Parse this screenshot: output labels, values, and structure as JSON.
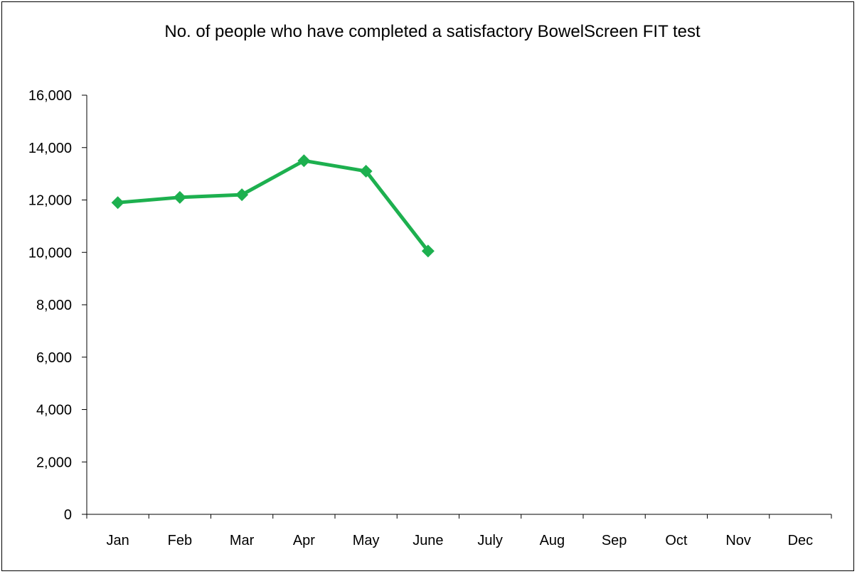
{
  "chart_data": {
    "type": "line",
    "title": "No. of people who have completed a satisfactory BowelScreen FIT test",
    "xlabel": "",
    "ylabel": "",
    "categories": [
      "Jan",
      "Feb",
      "Mar",
      "Apr",
      "May",
      "June",
      "July",
      "Aug",
      "Sep",
      "Oct",
      "Nov",
      "Dec"
    ],
    "series": [
      {
        "values": [
          11900,
          12100,
          12200,
          13500,
          13100,
          10050,
          null,
          null,
          null,
          null,
          null,
          null
        ]
      }
    ],
    "ylim": [
      0,
      16000
    ],
    "yticks": [
      0,
      2000,
      4000,
      6000,
      8000,
      10000,
      12000,
      14000,
      16000
    ],
    "ytick_labels": [
      "0",
      "2,000",
      "4,000",
      "6,000",
      "8,000",
      "10,000",
      "12,000",
      "14,000",
      "16,000"
    ],
    "grid": false,
    "legend": "none",
    "line_color": "#1DB04F",
    "marker": "diamond"
  }
}
